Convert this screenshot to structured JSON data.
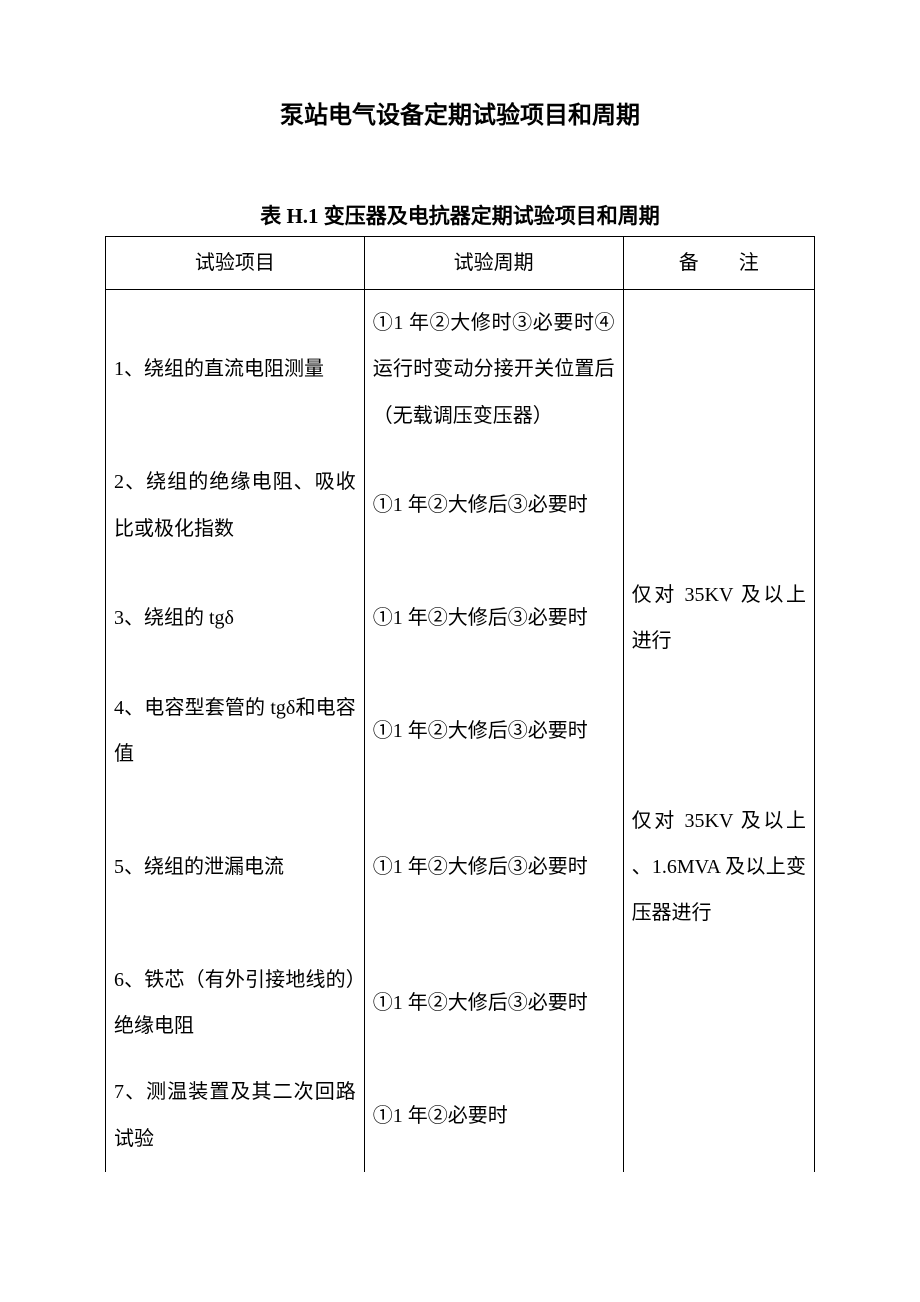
{
  "doc": {
    "title": "泵站电气设备定期试验项目和周期",
    "table_caption": "表 H.1 变压器及电抗器定期试验项目和周期",
    "columns": [
      "试验项目",
      "试验周期",
      "备　　注"
    ],
    "rows": [
      {
        "item": "1、绕组的直流电阻测量",
        "period": "①1 年②大修时③必要时④运行时变动分接开关位置后（无载调压变压器）",
        "note": ""
      },
      {
        "item": "2、绕组的绝缘电阻、吸收比或极化指数",
        "period": "①1 年②大修后③必要时",
        "note": ""
      },
      {
        "item": "3、绕组的 tgδ",
        "period": "①1 年②大修后③必要时",
        "note": "仅对 35KV 及以上进行"
      },
      {
        "item": "4、电容型套管的 tgδ和电容值",
        "period": "①1 年②大修后③必要时",
        "note": ""
      },
      {
        "item": "5、绕组的泄漏电流",
        "period": "①1 年②大修后③必要时",
        "note": "仅对 35KV 及以上 、1.6MVA 及以上变压器进行"
      },
      {
        "item": "6、铁芯（有外引接地线的）绝缘电阻",
        "period": "①1 年②大修后③必要时",
        "note": ""
      },
      {
        "item": "7、测温装置及其二次回路试验",
        "period": "①1 年②必要时",
        "note": ""
      }
    ]
  },
  "style": {
    "background_color": "#ffffff",
    "text_color": "#000000",
    "border_color": "#000000",
    "title_fontsize": 24,
    "caption_fontsize": 21,
    "body_fontsize": 20,
    "line_height": 2.32,
    "font_family": "SimSun"
  }
}
